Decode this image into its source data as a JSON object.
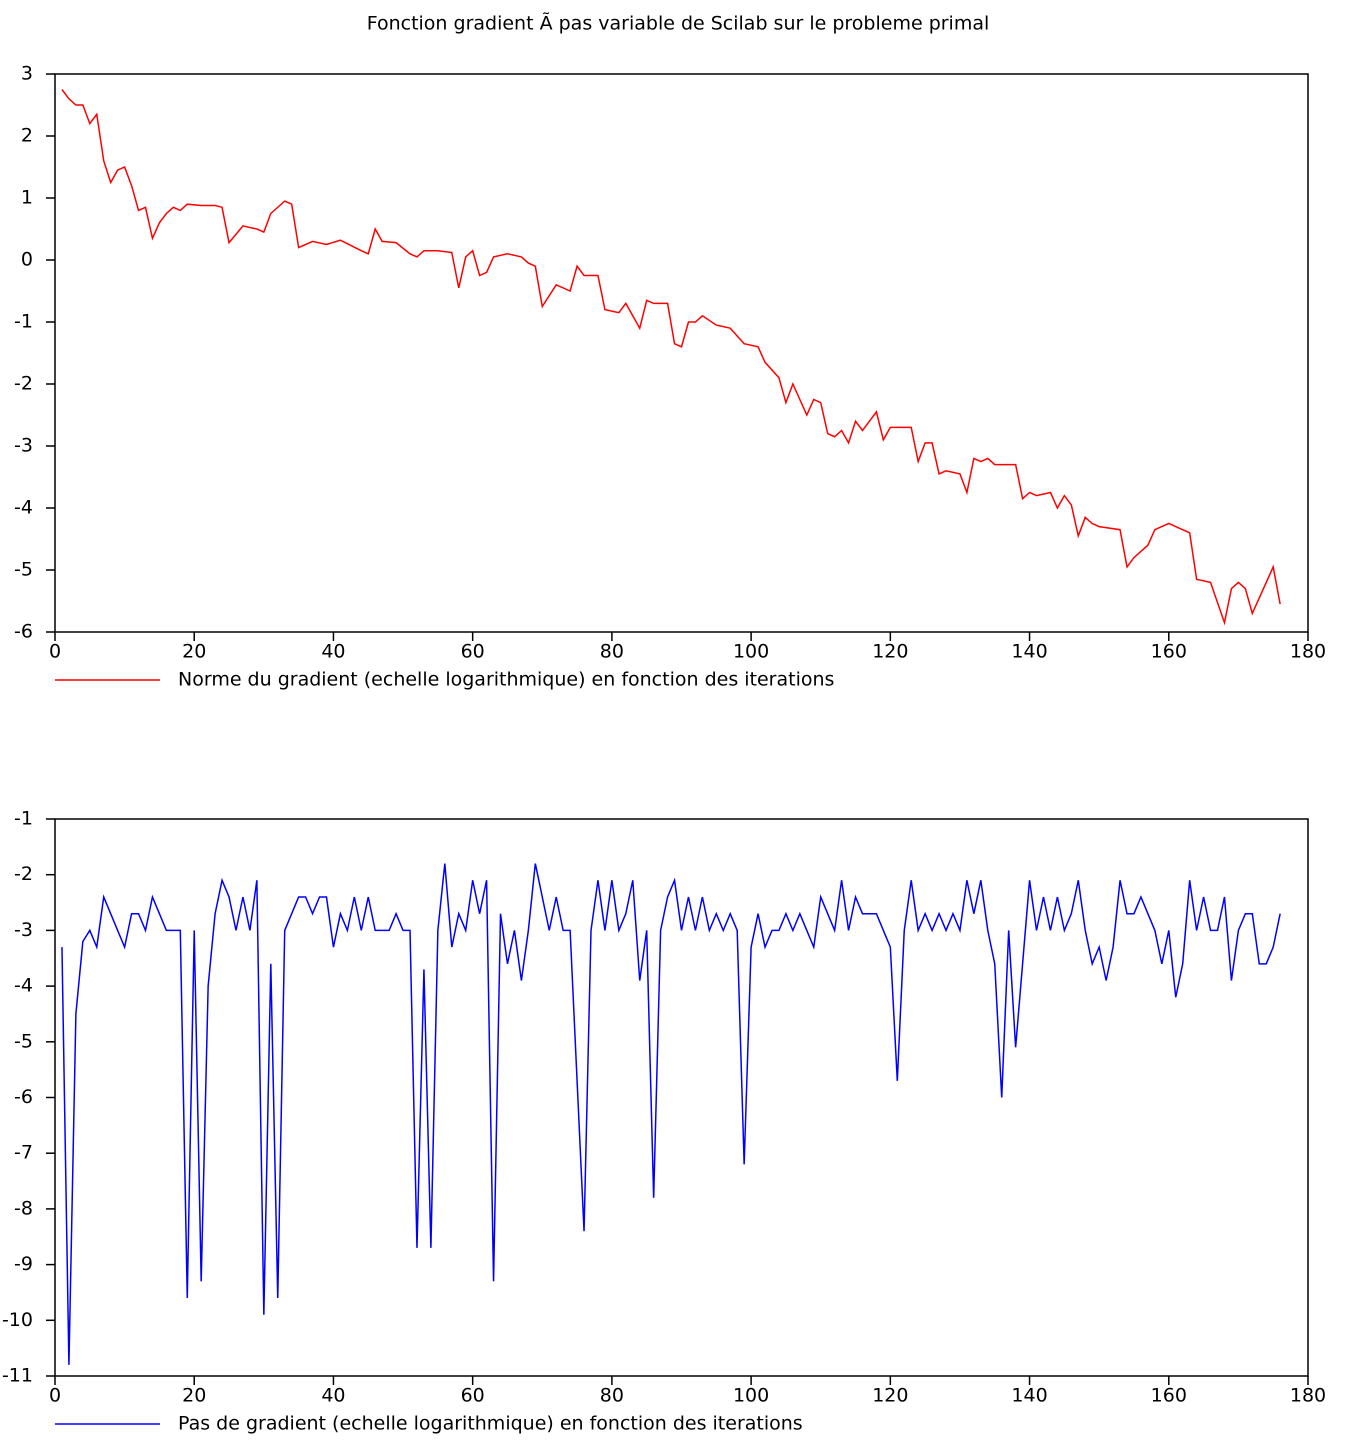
{
  "chart_data": [
    {
      "type": "line",
      "title": "Fonction gradient Ã  pas variable de Scilab sur le probleme primal",
      "x": [
        1,
        2,
        3,
        4,
        5,
        6,
        7,
        8,
        9,
        10,
        11,
        12,
        13,
        14,
        15,
        16,
        17,
        18,
        19,
        21,
        23,
        24,
        25,
        27,
        29,
        30,
        31,
        33,
        34,
        35,
        37,
        39,
        41,
        44,
        45,
        46,
        47,
        49,
        51,
        52,
        53,
        55,
        57,
        58,
        59,
        60,
        61,
        62,
        63,
        65,
        67,
        68,
        69,
        70,
        72,
        74,
        75,
        76,
        78,
        79,
        81,
        82,
        84,
        85,
        86,
        88,
        89,
        90,
        91,
        92,
        93,
        95,
        97,
        99,
        101,
        102,
        104,
        105,
        106,
        107,
        108,
        109,
        110,
        111,
        112,
        113,
        114,
        115,
        116,
        117,
        118,
        119,
        120,
        123,
        124,
        125,
        126,
        127,
        128,
        130,
        131,
        132,
        133,
        134,
        135,
        138,
        139,
        140,
        141,
        143,
        144,
        145,
        146,
        147,
        148,
        149,
        150,
        153,
        154,
        155,
        157,
        158,
        159,
        160,
        162,
        163,
        164,
        166,
        168,
        169,
        170,
        171,
        172,
        174,
        175,
        176
      ],
      "series": [
        {
          "name": "Norme du gradient (echelle logarithmique) en fonction des iterations",
          "color": "#ff0000",
          "values": [
            2.75,
            2.6,
            2.5,
            2.5,
            2.2,
            2.35,
            1.6,
            1.25,
            1.45,
            1.5,
            1.2,
            0.8,
            0.85,
            0.35,
            0.6,
            0.75,
            0.85,
            0.8,
            0.9,
            0.88,
            0.88,
            0.85,
            0.28,
            0.55,
            0.5,
            0.45,
            0.75,
            0.95,
            0.9,
            0.2,
            0.3,
            0.25,
            0.32,
            0.15,
            0.1,
            0.5,
            0.3,
            0.28,
            0.1,
            0.05,
            0.15,
            0.15,
            0.12,
            -0.45,
            0.05,
            0.15,
            -0.25,
            -0.2,
            0.05,
            0.1,
            0.05,
            -0.05,
            -0.1,
            -0.75,
            -0.4,
            -0.5,
            -0.1,
            -0.25,
            -0.25,
            -0.8,
            -0.85,
            -0.7,
            -1.1,
            -0.65,
            -0.7,
            -0.7,
            -1.35,
            -1.4,
            -1.0,
            -1.0,
            -0.9,
            -1.05,
            -1.1,
            -1.35,
            -1.4,
            -1.65,
            -1.9,
            -2.3,
            -2.0,
            -2.25,
            -2.5,
            -2.25,
            -2.3,
            -2.8,
            -2.85,
            -2.75,
            -2.95,
            -2.6,
            -2.75,
            -2.6,
            -2.45,
            -2.9,
            -2.7,
            -2.7,
            -3.25,
            -2.95,
            -2.95,
            -3.45,
            -3.4,
            -3.45,
            -3.75,
            -3.2,
            -3.25,
            -3.2,
            -3.3,
            -3.3,
            -3.85,
            -3.75,
            -3.8,
            -3.75,
            -4.0,
            -3.8,
            -3.95,
            -4.45,
            -4.15,
            -4.25,
            -4.3,
            -4.35,
            -4.95,
            -4.8,
            -4.6,
            -4.35,
            -4.3,
            -4.25,
            -4.35,
            -4.4,
            -5.15,
            -5.2,
            -5.85,
            -5.3,
            -5.2,
            -5.3,
            -5.7,
            -5.2,
            -4.95,
            -5.55
          ]
        }
      ],
      "xlim": [
        0,
        180
      ],
      "xticks": [
        0,
        20,
        40,
        60,
        80,
        100,
        120,
        140,
        160,
        180
      ],
      "ylim": [
        -6,
        3
      ],
      "yticks": [
        -6,
        -5,
        -4,
        -3,
        -2,
        -1,
        0,
        1,
        2,
        3
      ]
    },
    {
      "type": "line",
      "x": [
        1,
        2,
        3,
        4,
        5,
        6,
        7,
        8,
        9,
        10,
        11,
        12,
        13,
        14,
        15,
        16,
        17,
        18,
        19,
        20,
        21,
        22,
        23,
        24,
        25,
        26,
        27,
        28,
        29,
        30,
        31,
        32,
        33,
        34,
        35,
        36,
        37,
        38,
        39,
        40,
        41,
        42,
        43,
        44,
        45,
        46,
        47,
        48,
        49,
        50,
        51,
        52,
        53,
        54,
        55,
        56,
        57,
        58,
        59,
        60,
        61,
        62,
        63,
        64,
        65,
        66,
        67,
        68,
        69,
        70,
        71,
        72,
        73,
        74,
        75,
        76,
        77,
        78,
        79,
        80,
        81,
        82,
        83,
        84,
        85,
        86,
        87,
        88,
        89,
        90,
        91,
        92,
        93,
        94,
        95,
        96,
        97,
        98,
        99,
        100,
        101,
        102,
        103,
        104,
        105,
        106,
        107,
        108,
        109,
        110,
        111,
        112,
        113,
        114,
        115,
        116,
        117,
        118,
        119,
        120,
        121,
        122,
        123,
        124,
        125,
        126,
        127,
        128,
        129,
        130,
        131,
        132,
        133,
        134,
        135,
        136,
        137,
        138,
        139,
        140,
        141,
        142,
        143,
        144,
        145,
        146,
        147,
        148,
        149,
        150,
        151,
        152,
        153,
        154,
        155,
        156,
        157,
        158,
        159,
        160,
        161,
        162,
        163,
        164,
        165,
        166,
        167,
        168,
        169,
        170,
        171,
        172,
        173,
        174,
        175,
        176
      ],
      "series": [
        {
          "name": "Pas de gradient (echelle logarithmique) en fonction des iterations",
          "color": "#0000ff",
          "values": [
            -3.3,
            -10.8,
            -4.5,
            -3.2,
            -3.0,
            -3.3,
            -2.4,
            -2.7,
            -3.0,
            -3.3,
            -2.7,
            -2.7,
            -3.0,
            -2.4,
            -2.7,
            -3.0,
            -3.0,
            -3.0,
            -9.6,
            -3.0,
            -9.3,
            -4.0,
            -2.7,
            -2.1,
            -2.4,
            -3.0,
            -2.4,
            -3.0,
            -2.1,
            -9.9,
            -3.6,
            -9.6,
            -3.0,
            -2.7,
            -2.4,
            -2.4,
            -2.7,
            -2.4,
            -2.4,
            -3.3,
            -2.7,
            -3.0,
            -2.4,
            -3.0,
            -2.4,
            -3.0,
            -3.0,
            -3.0,
            -2.7,
            -3.0,
            -3.0,
            -8.7,
            -3.7,
            -8.7,
            -3.0,
            -1.8,
            -3.3,
            -2.7,
            -3.0,
            -2.1,
            -2.7,
            -2.1,
            -9.3,
            -2.7,
            -3.6,
            -3.0,
            -3.9,
            -3.0,
            -1.8,
            -2.4,
            -3.0,
            -2.4,
            -3.0,
            -3.0,
            -5.7,
            -8.4,
            -3.0,
            -2.1,
            -3.0,
            -2.1,
            -3.0,
            -2.7,
            -2.1,
            -3.9,
            -3.0,
            -7.8,
            -3.0,
            -2.4,
            -2.1,
            -3.0,
            -2.4,
            -3.0,
            -2.4,
            -3.0,
            -2.7,
            -3.0,
            -2.7,
            -3.0,
            -7.2,
            -3.3,
            -2.7,
            -3.3,
            -3.0,
            -3.0,
            -2.7,
            -3.0,
            -2.7,
            -3.0,
            -3.3,
            -2.4,
            -2.7,
            -3.0,
            -2.1,
            -3.0,
            -2.4,
            -2.7,
            -2.7,
            -2.7,
            -3.0,
            -3.3,
            -5.7,
            -3.0,
            -2.1,
            -3.0,
            -2.7,
            -3.0,
            -2.7,
            -3.0,
            -2.7,
            -3.0,
            -2.1,
            -2.7,
            -2.1,
            -3.0,
            -3.6,
            -6.0,
            -3.0,
            -5.1,
            -3.6,
            -2.1,
            -3.0,
            -2.4,
            -3.0,
            -2.4,
            -3.0,
            -2.7,
            -2.1,
            -3.0,
            -3.6,
            -3.3,
            -3.9,
            -3.3,
            -2.1,
            -2.7,
            -2.7,
            -2.4,
            -2.7,
            -3.0,
            -3.6,
            -3.0,
            -4.2,
            -3.6,
            -2.1,
            -3.0,
            -2.4,
            -3.0,
            -3.0,
            -2.4,
            -3.9,
            -3.0,
            -2.7,
            -2.7,
            -3.6,
            -3.6,
            -3.3,
            -2.7
          ]
        }
      ],
      "xlim": [
        0,
        180
      ],
      "xticks": [
        0,
        20,
        40,
        60,
        80,
        100,
        120,
        140,
        160,
        180
      ],
      "ylim": [
        -11,
        -1
      ],
      "yticks": [
        -11,
        -10,
        -9,
        -8,
        -7,
        -6,
        -5,
        -4,
        -3,
        -2,
        -1
      ]
    }
  ]
}
